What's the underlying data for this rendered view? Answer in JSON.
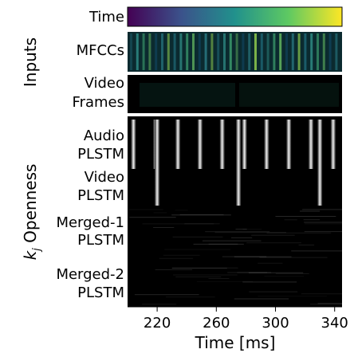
{
  "chart_data": {
    "type": "heatmap",
    "xlabel": "Time [ms]",
    "xticks": [
      220,
      260,
      300,
      340
    ],
    "xlim": [
      200,
      345
    ],
    "colorbar": {
      "label": "Time",
      "colormap": "viridis"
    },
    "groups": [
      {
        "name": "Inputs",
        "rows": [
          "MFCCs",
          "Video Frames"
        ]
      },
      {
        "name": "k_j Openness",
        "rows": [
          "Audio PLSTM",
          "Video PLSTM",
          "Merged-1 PLSTM",
          "Merged-2 PLSTM"
        ]
      }
    ],
    "panels": {
      "mfcc": {
        "line1": "MFCCs",
        "line2": ""
      },
      "video": {
        "line1": "Video",
        "line2": "Frames"
      },
      "openness": [
        {
          "line1": "Audio",
          "line2": "PLSTM"
        },
        {
          "line1": "Video",
          "line2": "PLSTM"
        },
        {
          "line1": "Merged-1",
          "line2": "PLSTM"
        },
        {
          "line1": "Merged-2",
          "line2": "PLSTM"
        }
      ]
    },
    "audio_pulse_times_ms": [
      204,
      219,
      234,
      249,
      264,
      279,
      294,
      309,
      324,
      339
    ],
    "video_pulse_times_ms": [
      220,
      275,
      330
    ]
  },
  "labels": {
    "inputs_group": "Inputs",
    "openness_group_k": "k",
    "openness_group_j": "j",
    "openness_group_rest": " Openness",
    "colorbar_label": "Time",
    "xlabel": "Time [ms]"
  },
  "colors": {
    "viridis_start": "#440154",
    "viridis_mid": "#21918c",
    "viridis_end": "#fde725",
    "panel_bg": "#000000",
    "pulse": "#e8e8e8"
  }
}
